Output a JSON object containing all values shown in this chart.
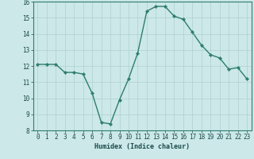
{
  "x": [
    0,
    1,
    2,
    3,
    4,
    5,
    6,
    7,
    8,
    9,
    10,
    11,
    12,
    13,
    14,
    15,
    16,
    17,
    18,
    19,
    20,
    21,
    22,
    23
  ],
  "y": [
    12.1,
    12.1,
    12.1,
    11.6,
    11.6,
    11.5,
    10.3,
    8.5,
    8.4,
    9.9,
    11.2,
    12.8,
    15.4,
    15.7,
    15.7,
    15.1,
    14.9,
    14.1,
    13.3,
    12.7,
    12.5,
    11.8,
    11.9,
    11.2
  ],
  "line_color": "#2e7d6e",
  "marker": "D",
  "marker_size": 2.2,
  "bg_color": "#cce8e8",
  "grid_color": "#b0d0d0",
  "xlabel": "Humidex (Indice chaleur)",
  "ylim": [
    8,
    16
  ],
  "yticks": [
    8,
    9,
    10,
    11,
    12,
    13,
    14,
    15,
    16
  ],
  "xticks": [
    0,
    1,
    2,
    3,
    4,
    5,
    6,
    7,
    8,
    9,
    10,
    11,
    12,
    13,
    14,
    15,
    16,
    17,
    18,
    19,
    20,
    21,
    22,
    23
  ],
  "xtick_labels": [
    "0",
    "1",
    "2",
    "3",
    "4",
    "5",
    "6",
    "7",
    "8",
    "9",
    "10",
    "11",
    "12",
    "13",
    "14",
    "15",
    "16",
    "17",
    "18",
    "19",
    "20",
    "21",
    "22",
    "23"
  ],
  "font_color": "#1a4a4a",
  "spine_color": "#2e7d6e",
  "xlabel_fontsize": 6.0,
  "tick_fontsize": 5.5,
  "linewidth": 1.0
}
